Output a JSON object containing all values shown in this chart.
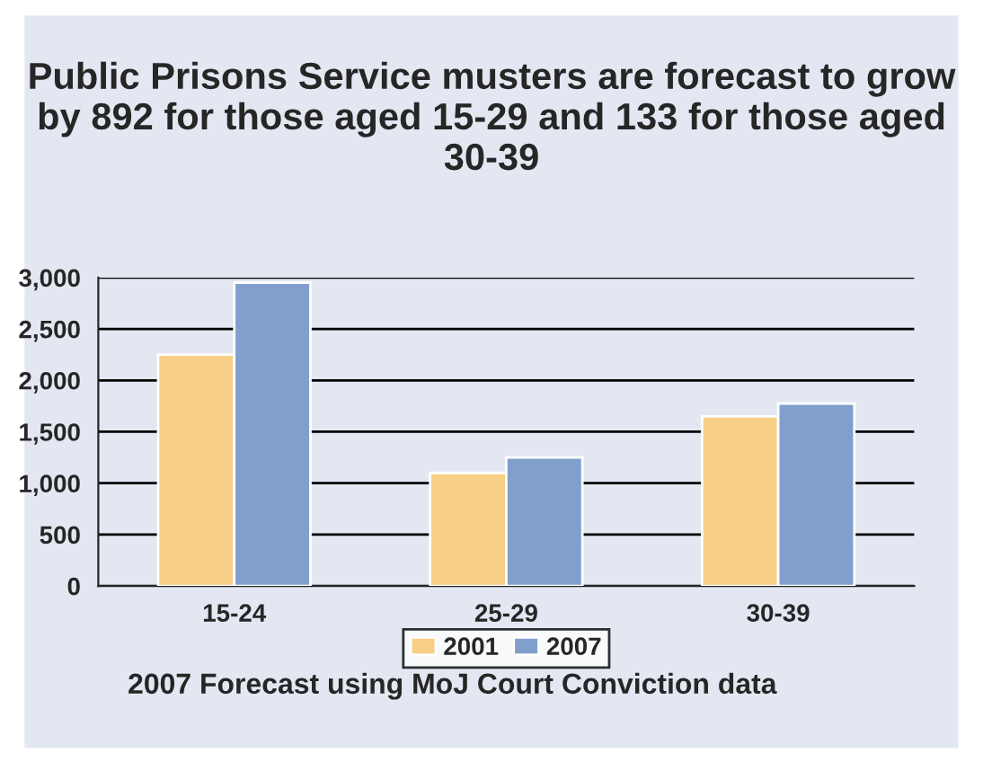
{
  "chart_data": {
    "type": "bar",
    "title": "Public Prisons Service musters are forecast to grow by 892 for those aged 15-29 and 133 for those aged 30-39",
    "categories": [
      "15-24",
      "25-29",
      "30-39"
    ],
    "series": [
      {
        "name": "2001",
        "color": "#f8cf86",
        "values": [
          2250,
          1100,
          1650
        ]
      },
      {
        "name": "2007",
        "color": "#819fcc",
        "values": [
          2950,
          1250,
          1775
        ]
      }
    ],
    "ylim": [
      0,
      3000
    ],
    "yticks": [
      0,
      {
        "value": 500,
        "label": "500"
      },
      {
        "value": 1000,
        "label": "1,000"
      },
      {
        "value": 1500,
        "label": "1,500"
      },
      {
        "value": 2000,
        "label": "2,000"
      },
      {
        "value": 2500,
        "label": "2,500"
      },
      {
        "value": 3000,
        "label": "3,000"
      }
    ],
    "grid": "y",
    "legend": "bottom",
    "annotations": [
      "2007 Forecast using MoJ Court Conviction data"
    ]
  }
}
